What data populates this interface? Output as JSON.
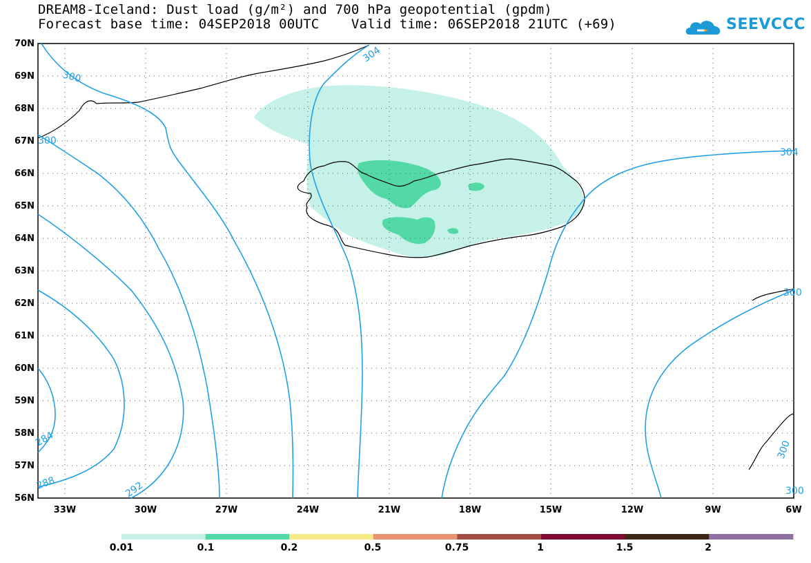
{
  "title": {
    "line1": "DREAM8-Iceland: Dust load (g/m²) and 700 hPa geopotential (gpdm)",
    "line2": "Forecast base time: 04SEP2018 00UTC    Valid time: 06SEP2018 21UTC (+69)"
  },
  "logo": {
    "text": "SEEVCCC",
    "icon": "cloud-icon",
    "color": "#1c9ad6"
  },
  "axes": {
    "lat_labels": [
      "70N",
      "69N",
      "68N",
      "67N",
      "66N",
      "65N",
      "64N",
      "63N",
      "62N",
      "61N",
      "60N",
      "59N",
      "58N",
      "57N",
      "56N"
    ],
    "lon_labels": [
      "33W",
      "30W",
      "27W",
      "24W",
      "21W",
      "18W",
      "15W",
      "12W",
      "9W",
      "6W"
    ]
  },
  "contour_labels": [
    "300",
    "304",
    "300",
    "304",
    "300",
    "300",
    "284",
    "288",
    "292",
    "300"
  ],
  "colorbar": {
    "labels": [
      "0.01",
      "0.1",
      "0.2",
      "0.5",
      "0.75",
      "1",
      "1.5",
      "2"
    ],
    "colors": [
      "#c6f1e8",
      "#52d9a6",
      "#f7e98a",
      "#eb9370",
      "#a34e45",
      "#7d0b33",
      "#3d2613",
      "#8f70a3"
    ]
  },
  "colors": {
    "contour": "#1fa0e6",
    "land_outline": "#000000",
    "dust_low": "#c6f1e8",
    "dust_mid": "#52d9a6"
  }
}
